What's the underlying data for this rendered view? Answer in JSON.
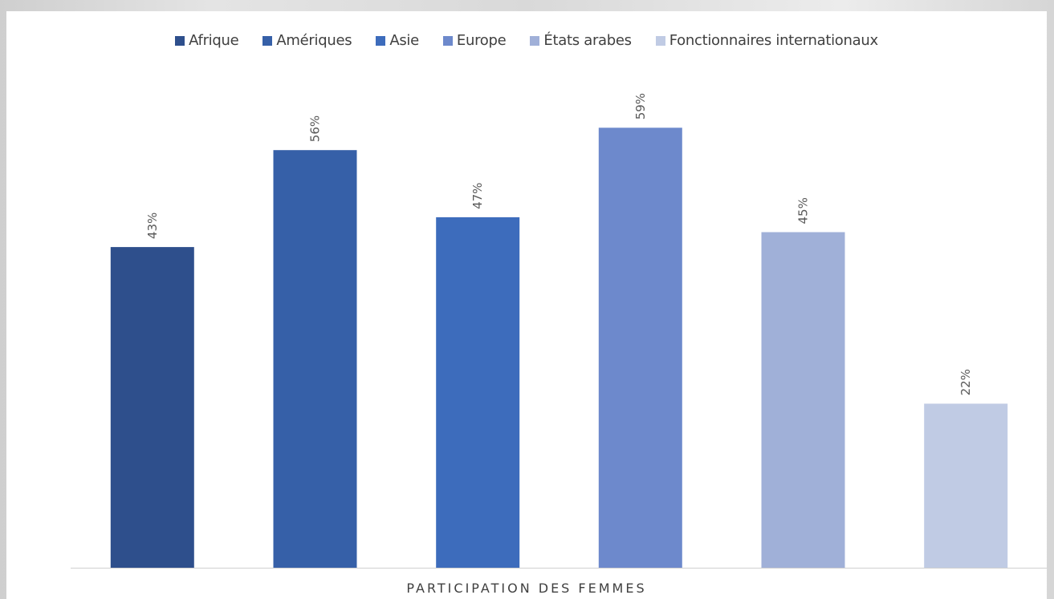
{
  "chart_data": {
    "type": "bar",
    "categories": [
      "Afrique",
      "Amériques",
      "Asie",
      "Europe",
      "États arabes",
      "Fonctionnaires internationaux"
    ],
    "values": [
      43,
      56,
      47,
      59,
      45,
      22
    ],
    "data_labels": [
      "43%",
      "56%",
      "47%",
      "59%",
      "45%",
      "22%"
    ],
    "colors": [
      "#2e4f8c",
      "#3660a8",
      "#3d6cbc",
      "#6d89cc",
      "#a0b0d8",
      "#c0cbe4"
    ],
    "xlabel": "PARTICIPATION DES FEMMES",
    "ylabel": "",
    "ylim": [
      0,
      70
    ],
    "grid": false,
    "legend_position": "top",
    "y_axis_visible": false
  }
}
